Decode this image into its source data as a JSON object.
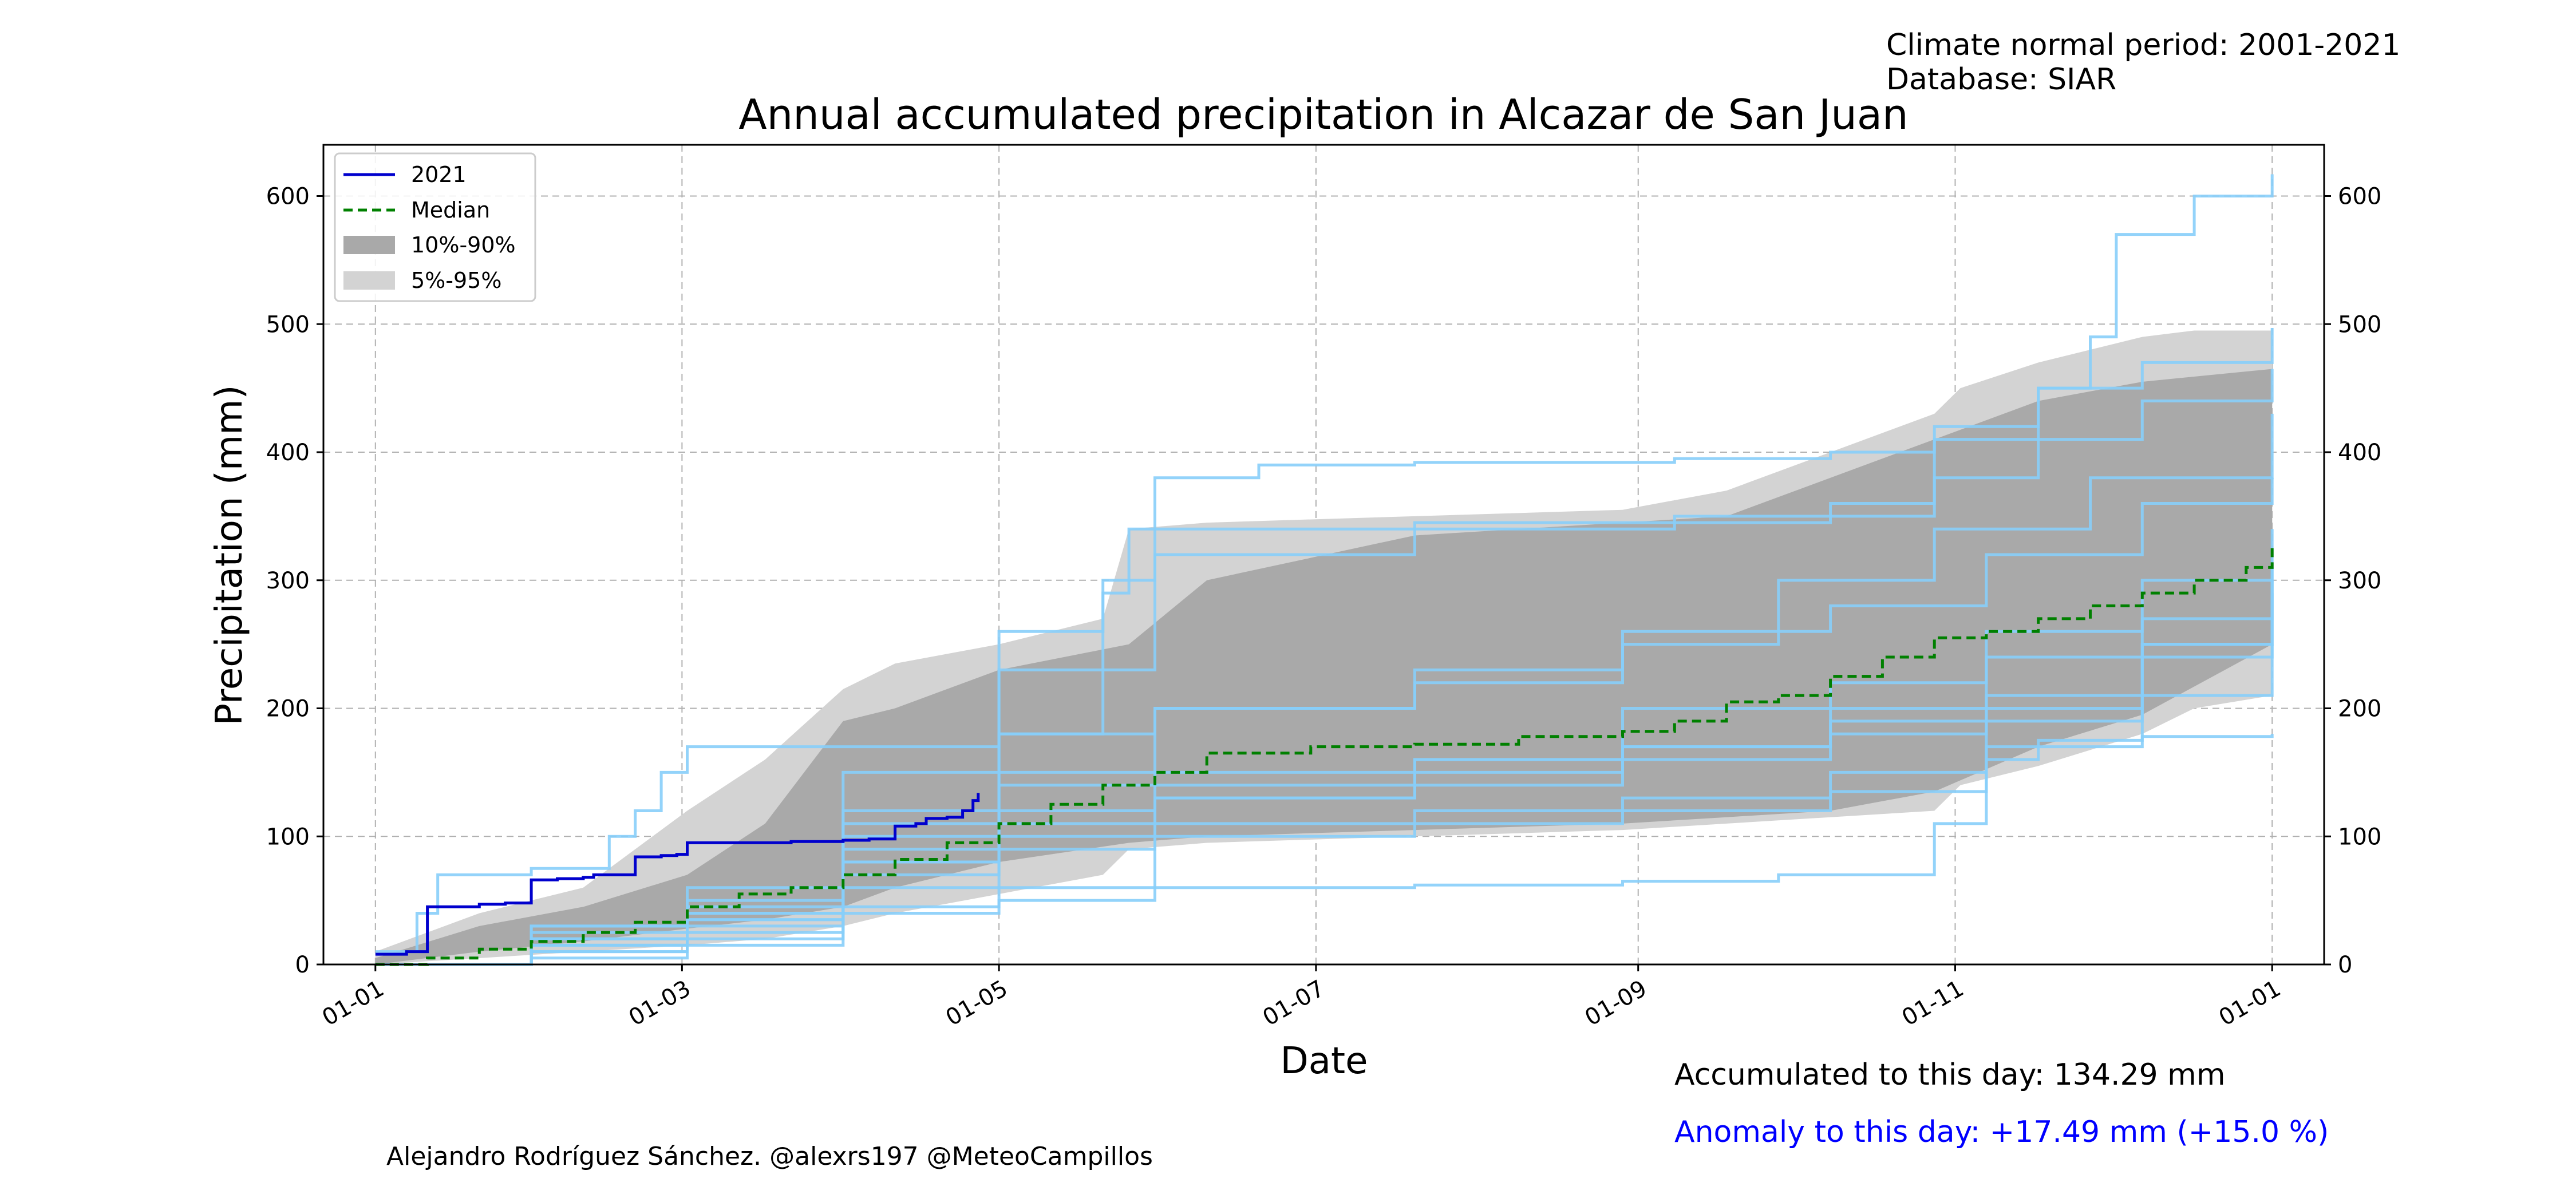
{
  "header": {
    "normal_period": "Climate normal period: 2001-2021",
    "database": "Database: SIAR"
  },
  "footer": {
    "accumulated": "Accumulated to this day: 134.29 mm",
    "anomaly": "Anomaly to this day: +17.49 mm (+15.0 %)",
    "credit": "Alejandro Rodríguez Sánchez. @alexrs197 @MeteoCampillos"
  },
  "colors": {
    "current_year": "#0000cd",
    "median": "#008000",
    "historical_years": "#87cefa",
    "band_10_90": "#a9a9a9",
    "band_5_95": "#d3d3d3",
    "anomaly_text": "#0000ff",
    "grid": "#b0b0b0"
  },
  "chart_data": {
    "type": "line",
    "title": "Annual accumulated precipitation in Alcazar de San Juan",
    "xlabel": "Date",
    "ylabel": "Precipitation (mm)",
    "x_unit": "day_of_year",
    "xlim": [
      -10,
      375
    ],
    "ylim": [
      0,
      640
    ],
    "x_ticks": [
      {
        "day": 0,
        "label": "01-01"
      },
      {
        "day": 59,
        "label": "01-03"
      },
      {
        "day": 120,
        "label": "01-05"
      },
      {
        "day": 181,
        "label": "01-07"
      },
      {
        "day": 243,
        "label": "01-09"
      },
      {
        "day": 304,
        "label": "01-11"
      },
      {
        "day": 365,
        "label": "01-01"
      }
    ],
    "y_ticks": [
      0,
      100,
      200,
      300,
      400,
      500,
      600
    ],
    "y_ticks_right": true,
    "grid": true,
    "legend_position": "upper-left",
    "legend": [
      {
        "label": "2021",
        "style": "line",
        "color": "#0000cd"
      },
      {
        "label": "Median",
        "style": "dashed",
        "color": "#008000"
      },
      {
        "label": "10%-90%",
        "style": "patch",
        "color": "#a9a9a9"
      },
      {
        "label": "5%-95%",
        "style": "patch",
        "color": "#d3d3d3"
      }
    ],
    "band_5_95": {
      "x": [
        0,
        20,
        40,
        60,
        75,
        90,
        100,
        120,
        140,
        145,
        160,
        200,
        240,
        260,
        280,
        300,
        305,
        320,
        340,
        350,
        365
      ],
      "lower": [
        0,
        5,
        10,
        15,
        20,
        30,
        40,
        55,
        70,
        90,
        95,
        100,
        105,
        110,
        115,
        120,
        140,
        155,
        180,
        200,
        210
      ],
      "upper": [
        10,
        40,
        60,
        120,
        160,
        215,
        235,
        250,
        270,
        340,
        345,
        350,
        355,
        370,
        400,
        430,
        450,
        470,
        490,
        495,
        495
      ]
    },
    "band_10_90": {
      "x": [
        0,
        20,
        40,
        60,
        75,
        90,
        100,
        120,
        145,
        160,
        200,
        240,
        260,
        280,
        300,
        320,
        340,
        365
      ],
      "lower": [
        0,
        10,
        18,
        28,
        35,
        45,
        60,
        80,
        95,
        100,
        105,
        110,
        115,
        120,
        135,
        170,
        195,
        250
      ],
      "upper": [
        5,
        30,
        45,
        70,
        110,
        190,
        200,
        230,
        250,
        300,
        335,
        345,
        350,
        380,
        410,
        440,
        455,
        465
      ]
    },
    "series": [
      {
        "name": "2021",
        "x": [
          0,
          5,
          6,
          10,
          20,
          25,
          30,
          35,
          40,
          42,
          50,
          55,
          58,
          60,
          80,
          90,
          95,
          100,
          104,
          106,
          110,
          113,
          115,
          116
        ],
        "y": [
          8,
          8,
          10,
          45,
          47,
          48,
          66,
          67,
          68,
          70,
          84,
          85,
          86,
          95,
          96,
          97,
          98,
          108,
          110,
          114,
          115,
          120,
          128,
          134
        ]
      },
      {
        "name": "Median",
        "x": [
          0,
          10,
          20,
          30,
          40,
          50,
          60,
          70,
          80,
          90,
          100,
          110,
          120,
          130,
          140,
          150,
          160,
          180,
          200,
          220,
          240,
          250,
          260,
          270,
          280,
          290,
          300,
          310,
          320,
          330,
          340,
          350,
          360,
          365
        ],
        "y": [
          0,
          5,
          12,
          18,
          25,
          33,
          45,
          55,
          60,
          70,
          82,
          95,
          110,
          125,
          140,
          150,
          165,
          170,
          172,
          178,
          182,
          190,
          205,
          210,
          225,
          240,
          255,
          260,
          270,
          280,
          290,
          300,
          310,
          325
        ]
      }
    ],
    "historical_series": [
      {
        "x": [
          0,
          8,
          12,
          30,
          45,
          50,
          55,
          60,
          120,
          140,
          150,
          170,
          200,
          250,
          280,
          300,
          320,
          330,
          335,
          350,
          365
        ],
        "y": [
          10,
          40,
          70,
          75,
          100,
          120,
          150,
          170,
          180,
          300,
          380,
          390,
          392,
          395,
          400,
          410,
          450,
          490,
          570,
          600,
          617
        ]
      },
      {
        "x": [
          0,
          30,
          60,
          90,
          120,
          150,
          200,
          250,
          280,
          300,
          320,
          340,
          365
        ],
        "y": [
          0,
          20,
          40,
          110,
          230,
          320,
          340,
          345,
          360,
          420,
          450,
          470,
          497
        ]
      },
      {
        "x": [
          0,
          30,
          60,
          90,
          120,
          140,
          145,
          200,
          250,
          300,
          320,
          340,
          365
        ],
        "y": [
          0,
          30,
          60,
          150,
          260,
          290,
          340,
          345,
          350,
          380,
          410,
          440,
          465
        ]
      },
      {
        "x": [
          0,
          30,
          60,
          90,
          120,
          150,
          200,
          240,
          270,
          300,
          330,
          365
        ],
        "y": [
          0,
          15,
          35,
          80,
          150,
          200,
          220,
          250,
          300,
          340,
          380,
          430
        ]
      },
      {
        "x": [
          0,
          30,
          60,
          90,
          120,
          150,
          200,
          240,
          280,
          310,
          340,
          365
        ],
        "y": [
          0,
          25,
          50,
          120,
          180,
          200,
          230,
          260,
          280,
          320,
          360,
          380
        ]
      },
      {
        "x": [
          0,
          30,
          60,
          90,
          120,
          150,
          200,
          240,
          280,
          310,
          340,
          365
        ],
        "y": [
          0,
          10,
          30,
          60,
          140,
          150,
          160,
          200,
          220,
          260,
          300,
          340
        ]
      },
      {
        "x": [
          0,
          30,
          60,
          90,
          120,
          150,
          200,
          240,
          280,
          310,
          340,
          365
        ],
        "y": [
          0,
          20,
          40,
          100,
          120,
          130,
          140,
          170,
          200,
          240,
          270,
          300
        ]
      },
      {
        "x": [
          0,
          30,
          60,
          90,
          120,
          150,
          200,
          240,
          280,
          310,
          340,
          365
        ],
        "y": [
          0,
          5,
          20,
          45,
          60,
          100,
          110,
          120,
          135,
          170,
          210,
          250
        ]
      },
      {
        "x": [
          0,
          30,
          60,
          90,
          120,
          150,
          200,
          240,
          270,
          300,
          310,
          320,
          340,
          365
        ],
        "y": [
          0,
          10,
          15,
          40,
          50,
          60,
          62,
          65,
          70,
          110,
          160,
          175,
          178,
          180
        ]
      },
      {
        "x": [
          0,
          30,
          60,
          90,
          120,
          150,
          200,
          240,
          280,
          310,
          340,
          365
        ],
        "y": [
          0,
          30,
          45,
          90,
          110,
          130,
          150,
          160,
          180,
          200,
          240,
          300
        ]
      },
      {
        "x": [
          0,
          30,
          60,
          90,
          120,
          150,
          200,
          240,
          280,
          310,
          340,
          365
        ],
        "y": [
          0,
          15,
          25,
          70,
          90,
          110,
          120,
          130,
          150,
          190,
          250,
          290
        ]
      },
      {
        "x": [
          0,
          30,
          60,
          90,
          120,
          150,
          200,
          240,
          280,
          310,
          340,
          365
        ],
        "y": [
          0,
          20,
          35,
          80,
          100,
          140,
          160,
          170,
          190,
          210,
          250,
          310
        ]
      }
    ]
  }
}
